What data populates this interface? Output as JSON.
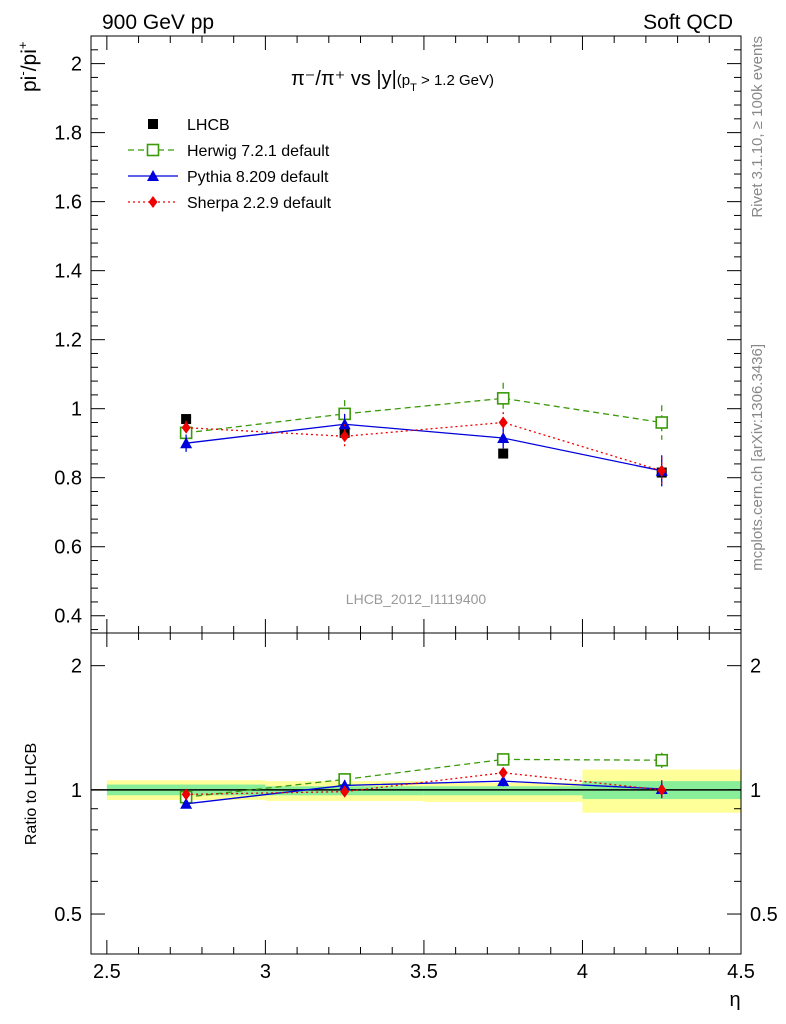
{
  "header": {
    "left": "900 GeV pp",
    "right": "Soft QCD"
  },
  "side_labels": {
    "rivet": "Rivet 3.1.10, ≥ 100k events",
    "mcplots": "mcplots.cern.ch [arXiv:1306.3436]"
  },
  "title": {
    "main": "π⁻/π⁺ vs |y|",
    "sub": "(p",
    "sub_sub": "T",
    "sub_rest": " > 1.2 GeV)"
  },
  "watermark": "LHCB_2012_I1119400",
  "colors": {
    "lhcb": "#000000",
    "herwig": "#3a9a0a",
    "pythia": "#0000dd",
    "sherpa": "#ee0000",
    "band_inner": "#88ee99",
    "band_outer": "#ffff99"
  },
  "chart_data": [
    {
      "type": "scatter",
      "title": "π⁻/π⁺ vs |y| (pT > 1.2 GeV)",
      "ylabel": "pi-/pi+",
      "xlabel": "η",
      "xlim": [
        2.45,
        4.5
      ],
      "ylim": [
        0.35,
        2.08
      ],
      "yticks": [
        "0.4",
        "0.6",
        "0.8",
        "1",
        "1.2",
        "1.4",
        "1.6",
        "1.8",
        "2"
      ],
      "legend_position": "top-left",
      "x": [
        2.75,
        3.25,
        3.75,
        4.25
      ],
      "series": [
        {
          "name": "LHCB",
          "key": "lhcb",
          "marker": "square",
          "values": [
            0.97,
            0.93,
            0.87,
            0.815
          ],
          "err": [
            0.01,
            0.01,
            0.01,
            0.01
          ]
        },
        {
          "name": "Herwig 7.2.1 default",
          "key": "herwig",
          "marker": "open-square",
          "line": "dashed",
          "values": [
            0.93,
            0.985,
            1.03,
            0.96
          ],
          "err": [
            0.02,
            0.04,
            0.045,
            0.05
          ]
        },
        {
          "name": "Pythia 8.209 default",
          "key": "pythia",
          "marker": "triangle",
          "line": "solid",
          "values": [
            0.9,
            0.955,
            0.915,
            0.82
          ],
          "err": [
            0.025,
            0.03,
            0.03,
            0.045
          ]
        },
        {
          "name": "Sherpa 2.2.9 default",
          "key": "sherpa",
          "marker": "diamond",
          "line": "dotted",
          "values": [
            0.945,
            0.92,
            0.96,
            0.82
          ],
          "err": [
            0.02,
            0.035,
            0.03,
            0.04
          ]
        }
      ]
    },
    {
      "type": "scatter",
      "title": "",
      "ylabel": "Ratio to LHCB",
      "xlabel": "η",
      "xlim": [
        2.45,
        4.5
      ],
      "ylim": [
        0.4,
        2.4
      ],
      "yscale": "log",
      "yticks": [
        "0.5",
        "1",
        "2"
      ],
      "xticks": [
        "2.5",
        "3",
        "3.5",
        "4",
        "4.5"
      ],
      "x": [
        2.75,
        3.25,
        3.75,
        4.25
      ],
      "bands": {
        "edges": [
          2.5,
          3.0,
          3.5,
          4.0,
          4.5
        ],
        "inner": [
          [
            0.97,
            1.03
          ],
          [
            0.97,
            1.02
          ],
          [
            0.97,
            1.02
          ],
          [
            0.95,
            1.05
          ]
        ],
        "outer": [
          [
            0.945,
            1.055
          ],
          [
            0.94,
            1.05
          ],
          [
            0.935,
            1.04
          ],
          [
            0.88,
            1.12
          ]
        ]
      },
      "series": [
        {
          "name": "Herwig 7.2.1 default",
          "key": "herwig",
          "marker": "open-square",
          "line": "dashed",
          "values": [
            0.96,
            1.06,
            1.185,
            1.18
          ],
          "err": [
            0.02,
            0.03,
            0.04,
            0.05
          ]
        },
        {
          "name": "Pythia 8.209 default",
          "key": "pythia",
          "marker": "triangle",
          "line": "solid",
          "values": [
            0.925,
            1.025,
            1.05,
            1.005
          ],
          "err": [
            0.02,
            0.03,
            0.03,
            0.05
          ]
        },
        {
          "name": "Sherpa 2.2.9 default",
          "key": "sherpa",
          "marker": "diamond",
          "line": "dotted",
          "values": [
            0.975,
            0.99,
            1.1,
            1.0
          ],
          "err": [
            0.02,
            0.03,
            0.03,
            0.05
          ]
        }
      ]
    }
  ]
}
